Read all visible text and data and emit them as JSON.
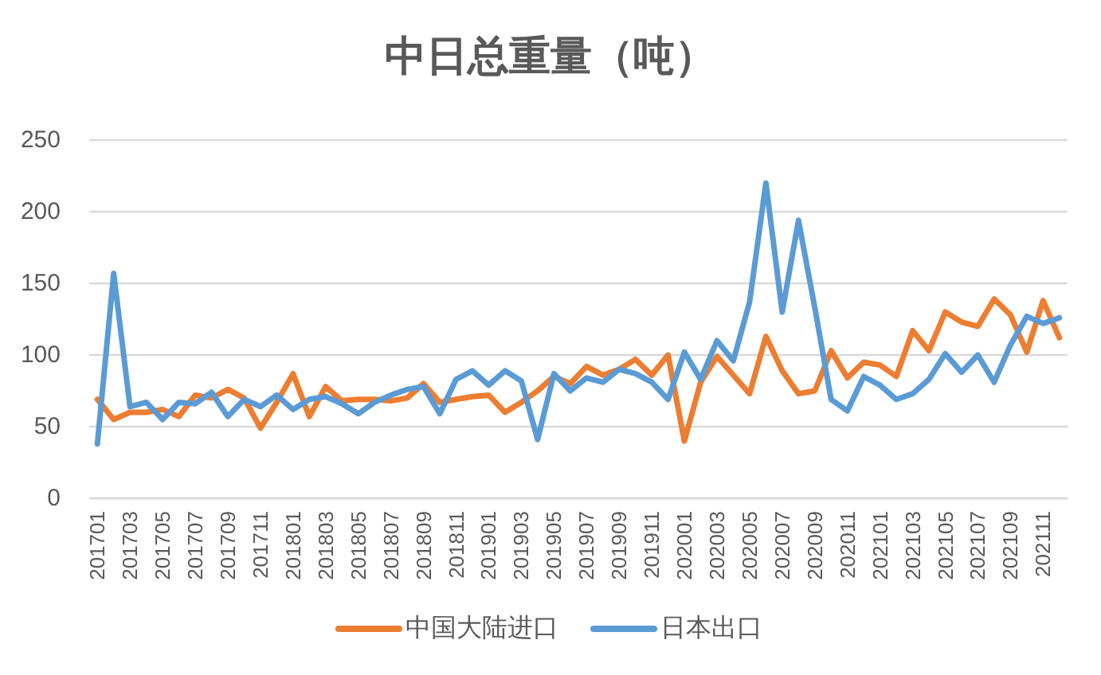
{
  "chart_data": {
    "type": "line",
    "title": "中日总重量（吨）",
    "categories": [
      "201701",
      null,
      "201703",
      null,
      "201705",
      null,
      "201707",
      null,
      "201709",
      null,
      "201711",
      null,
      "201801",
      null,
      "201803",
      null,
      "201805",
      null,
      "201807",
      null,
      "201809",
      null,
      "201811",
      null,
      "201901",
      null,
      "201903",
      null,
      "201905",
      null,
      "201907",
      null,
      "201909",
      null,
      "201911",
      null,
      "202001",
      null,
      "202003",
      null,
      "202005",
      null,
      "202007",
      null,
      "202009",
      null,
      "202011",
      null,
      "202101",
      null,
      "202103",
      null,
      "202105",
      null,
      "202107",
      null,
      "202109",
      null,
      "202111",
      null
    ],
    "series": [
      {
        "name": "中国大陆进口",
        "color": "#ed7d31",
        "values": [
          69,
          55,
          60,
          60,
          62,
          57,
          72,
          70,
          76,
          70,
          49,
          67,
          87,
          57,
          78,
          68,
          69,
          69,
          68,
          70,
          80,
          67,
          69,
          71,
          72,
          60,
          67,
          75,
          85,
          80,
          92,
          86,
          90,
          97,
          86,
          100,
          40,
          81,
          99,
          86,
          73,
          113,
          89,
          73,
          75,
          103,
          84,
          95,
          93,
          85,
          117,
          103,
          130,
          123,
          120,
          139,
          128,
          102,
          138,
          112
        ]
      },
      {
        "name": "日本出口",
        "color": "#5b9bd5",
        "values": [
          38,
          157,
          64,
          67,
          55,
          67,
          66,
          74,
          57,
          69,
          64,
          72,
          62,
          69,
          71,
          66,
          59,
          67,
          72,
          76,
          78,
          59,
          83,
          89,
          79,
          89,
          82,
          41,
          87,
          75,
          84,
          81,
          90,
          87,
          81,
          69,
          102,
          83,
          110,
          96,
          137,
          220,
          130,
          194,
          133,
          69,
          61,
          85,
          79,
          69,
          73,
          83,
          101,
          88,
          100,
          81,
          107,
          127,
          122,
          126
        ]
      }
    ],
    "ylim": [
      0,
      250
    ],
    "yticks": [
      0,
      50,
      100,
      150,
      200,
      250
    ],
    "grid": "y",
    "legend": "bottom",
    "line_style": "solid"
  }
}
